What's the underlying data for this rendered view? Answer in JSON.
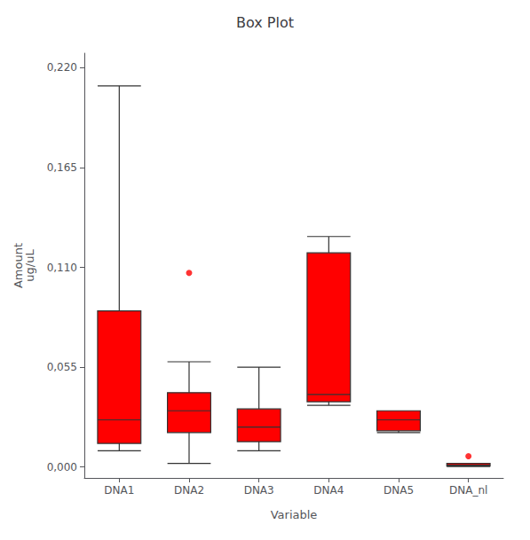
{
  "chart_data": {
    "type": "box",
    "title": "Box Plot",
    "xlabel": "Variable",
    "ylabel": "Amount\nug/uL",
    "categories": [
      "DNA1",
      "DNA2",
      "DNA3",
      "DNA4",
      "DNA5",
      "DNA_nl"
    ],
    "color": "#FF0000",
    "ylim": [
      -0.006,
      0.228
    ],
    "yticks": [
      {
        "value": 0.0,
        "label": "0,000"
      },
      {
        "value": 0.055,
        "label": "0,055"
      },
      {
        "value": 0.11,
        "label": "0,110"
      },
      {
        "value": 0.165,
        "label": "0,165"
      },
      {
        "value": 0.22,
        "label": "0,220"
      }
    ],
    "grid": false,
    "boxes": [
      {
        "q1": 0.013,
        "median": 0.026,
        "q3": 0.086,
        "whislo": 0.009,
        "whishi": 0.21,
        "fliers": []
      },
      {
        "q1": 0.019,
        "median": 0.031,
        "q3": 0.041,
        "whislo": 0.002,
        "whishi": 0.058,
        "fliers": [
          0.107
        ]
      },
      {
        "q1": 0.014,
        "median": 0.022,
        "q3": 0.032,
        "whislo": 0.009,
        "whishi": 0.055,
        "fliers": []
      },
      {
        "q1": 0.036,
        "median": 0.04,
        "q3": 0.118,
        "whislo": 0.034,
        "whishi": 0.127,
        "fliers": []
      },
      {
        "q1": 0.02,
        "median": 0.026,
        "q3": 0.031,
        "whislo": 0.019,
        "whishi": 0.031,
        "fliers": []
      },
      {
        "q1": 0.0005,
        "median": 0.001,
        "q3": 0.002,
        "whislo": 0.0003,
        "whishi": 0.002,
        "fliers": [
          0.006
        ]
      }
    ]
  }
}
